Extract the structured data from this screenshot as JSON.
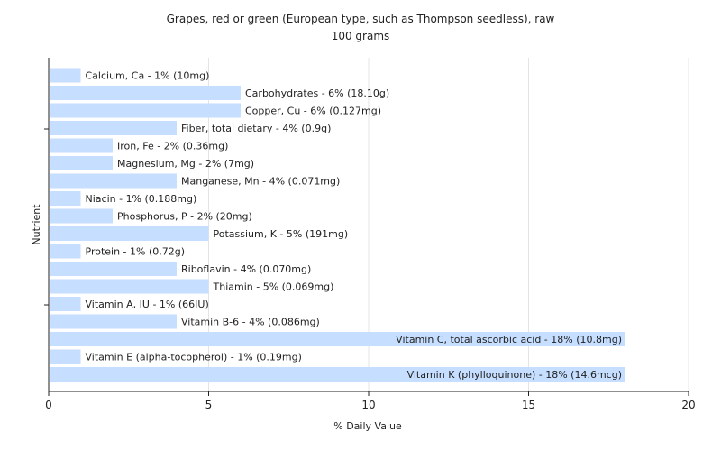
{
  "chart_data": {
    "type": "bar",
    "orientation": "horizontal",
    "title": "Grapes, red or green (European type, such as Thompson seedless), raw",
    "subtitle": "100 grams",
    "xlabel": "% Daily Value",
    "ylabel": "Nutrient",
    "xlim": [
      0,
      20
    ],
    "xticks": [
      "0",
      "5",
      "10",
      "15",
      "20"
    ],
    "grid": true,
    "bar_color": "#c6deff",
    "categories": [
      "Calcium, Ca - 1% (10mg)",
      "Carbohydrates - 6% (18.10g)",
      "Copper, Cu - 6% (0.127mg)",
      "Fiber, total dietary - 4% (0.9g)",
      "Iron, Fe - 2% (0.36mg)",
      "Magnesium, Mg - 2% (7mg)",
      "Manganese, Mn - 4% (0.071mg)",
      "Niacin - 1% (0.188mg)",
      "Phosphorus, P - 2% (20mg)",
      "Potassium, K - 5% (191mg)",
      "Protein - 1% (0.72g)",
      "Riboflavin - 4% (0.070mg)",
      "Thiamin - 5% (0.069mg)",
      "Vitamin A, IU - 1% (66IU)",
      "Vitamin B-6 - 4% (0.086mg)",
      "Vitamin C, total ascorbic acid - 18% (10.8mg)",
      "Vitamin E (alpha-tocopherol) - 1% (0.19mg)",
      "Vitamin K (phylloquinone) - 18% (14.6mcg)"
    ],
    "values": [
      1,
      6,
      6,
      4,
      2,
      2,
      4,
      1,
      2,
      5,
      1,
      4,
      5,
      1,
      4,
      18,
      1,
      18
    ]
  }
}
